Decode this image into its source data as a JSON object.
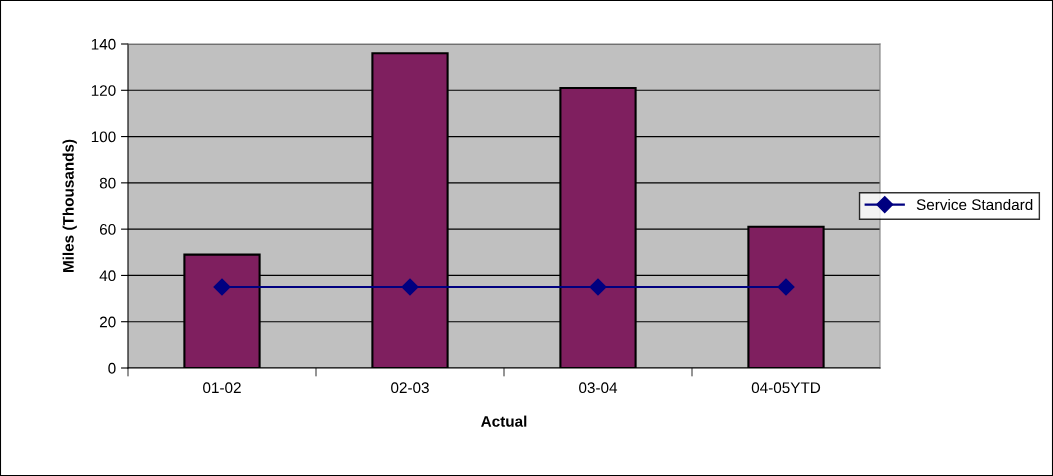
{
  "chart_data": {
    "type": "bar",
    "xlabel": "Actual",
    "ylabel": "Miles (Thousands)",
    "categories": [
      "01-02",
      "02-03",
      "03-04",
      "04-05YTD"
    ],
    "series": [
      {
        "color": "#7f1f5f",
        "values": [
          49,
          136,
          121,
          61
        ]
      },
      {
        "type": "line",
        "name": "Service Standard",
        "color": "#000080",
        "values": [
          35,
          35,
          35,
          35
        ],
        "marker": "diamond",
        "line_style": "solid"
      }
    ],
    "ylim": [
      0,
      140
    ],
    "yticks": [
      0,
      20,
      40,
      60,
      80,
      100,
      120,
      140
    ],
    "grid": "y",
    "legend": "right"
  }
}
